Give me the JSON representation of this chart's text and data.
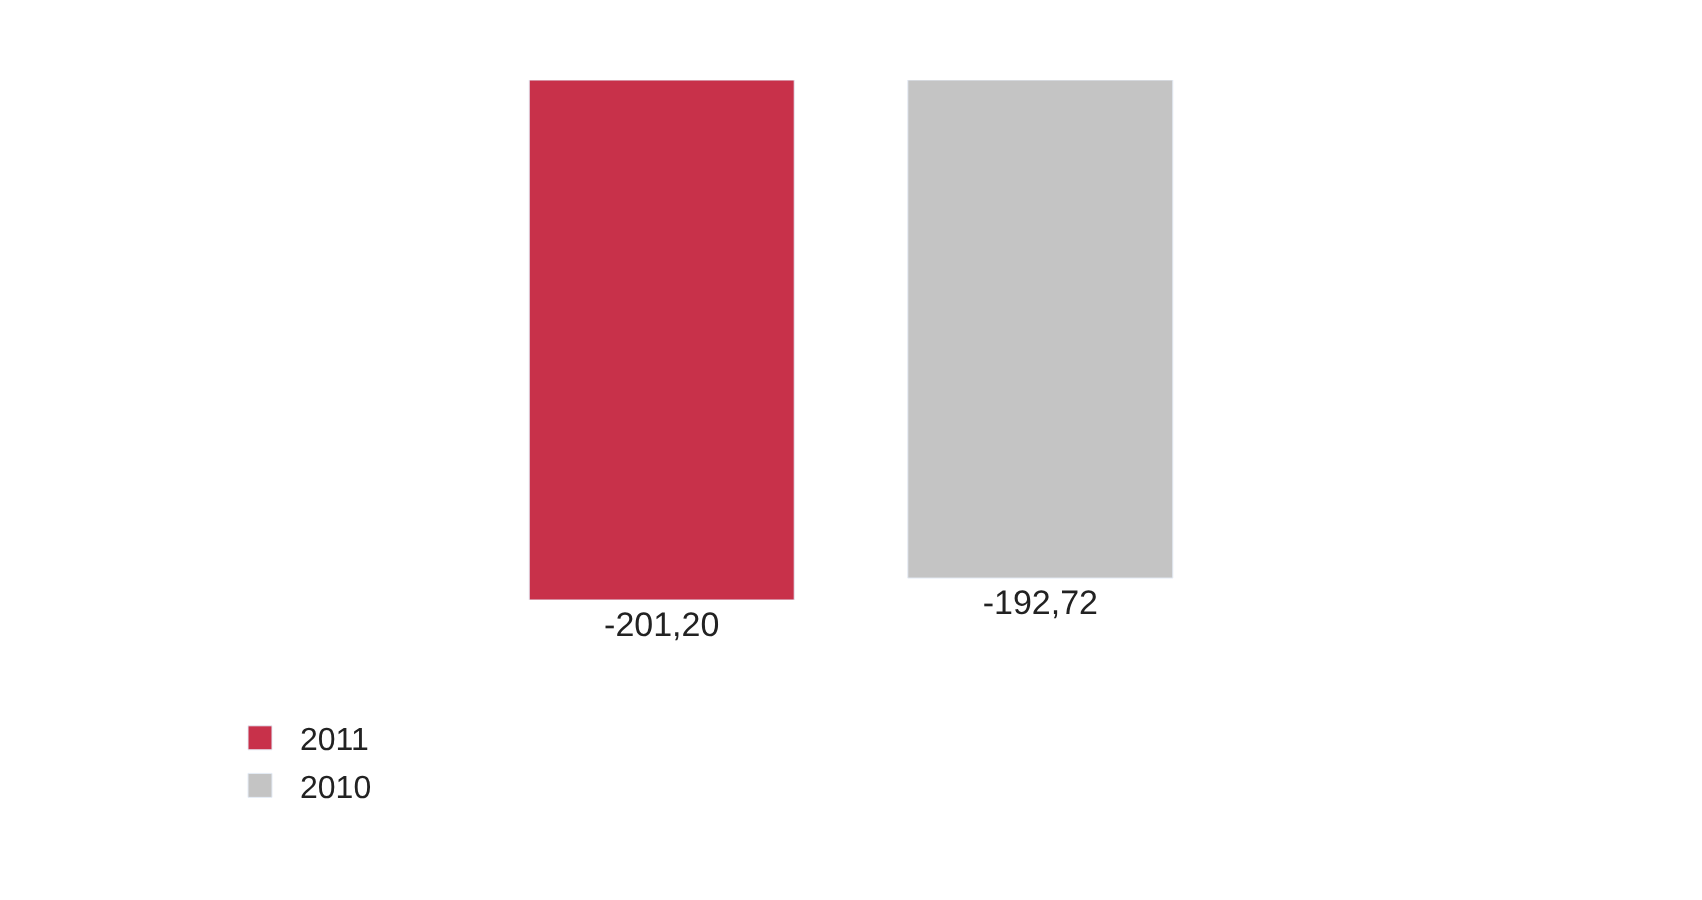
{
  "chart_data": {
    "type": "bar",
    "categories": [
      null
    ],
    "series": [
      {
        "name": "2011",
        "color": "#c8314a",
        "values": [
          -201.2
        ],
        "value_labels": [
          "-201,20"
        ]
      },
      {
        "name": "2010",
        "color": "#c4c4c4",
        "values": [
          -192.72
        ],
        "value_labels": [
          "-192,72"
        ]
      }
    ],
    "legend": "bottom left",
    "tick_labels": false
  }
}
